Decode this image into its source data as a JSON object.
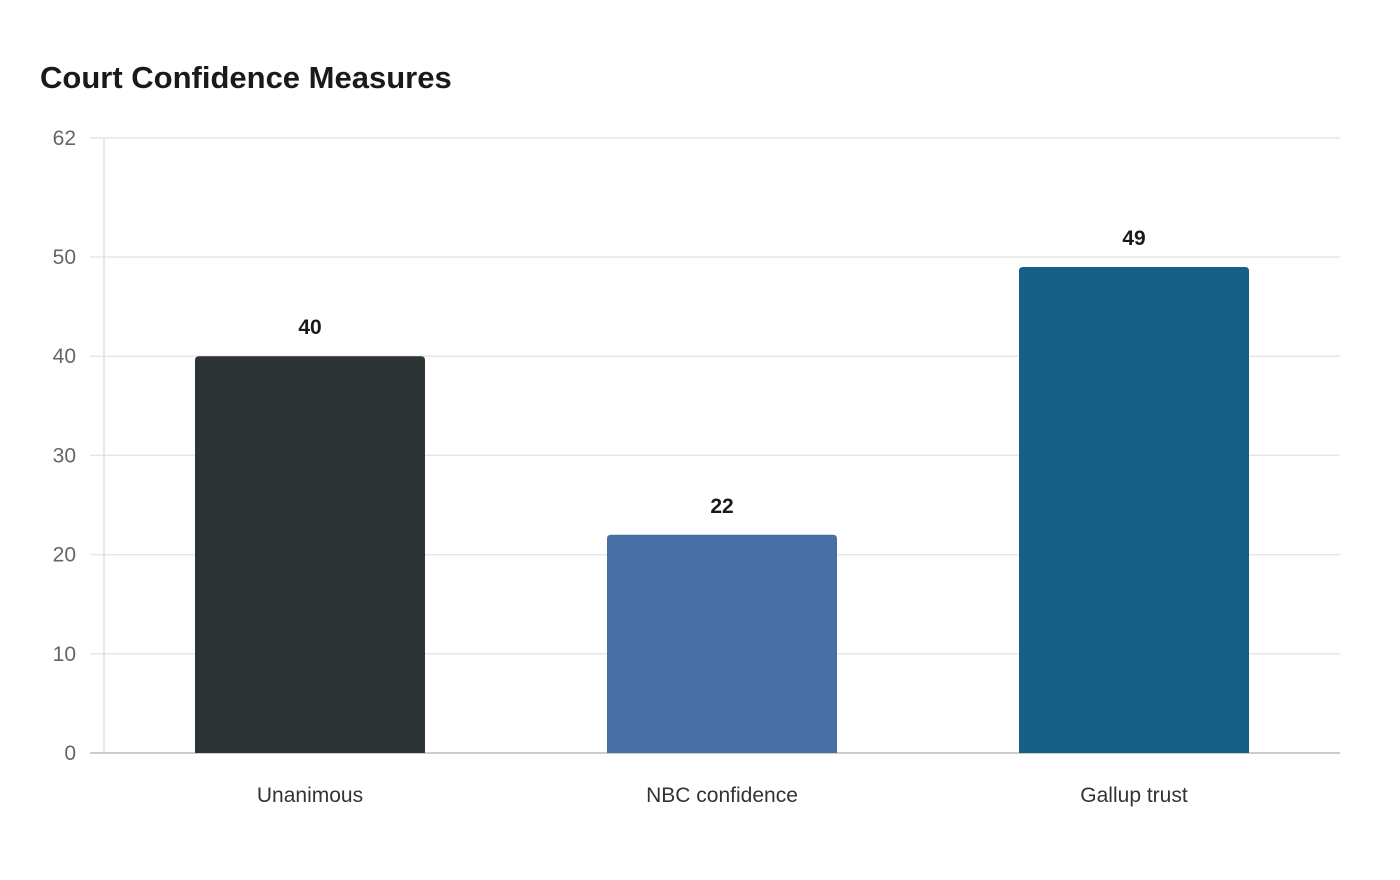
{
  "chart_data": {
    "type": "bar",
    "title": "Court Confidence Measures",
    "categories": [
      "Unanimous",
      "NBC confidence",
      "Gallup trust"
    ],
    "values": [
      40,
      22,
      49
    ],
    "colors": [
      "#2d3436",
      "#4a6fa5",
      "#166088"
    ],
    "yticks": [
      0,
      10,
      20,
      30,
      40,
      50,
      62
    ],
    "ylim": [
      0,
      62
    ],
    "xlabel": "",
    "ylabel": "",
    "grid": true,
    "legend": "none"
  }
}
